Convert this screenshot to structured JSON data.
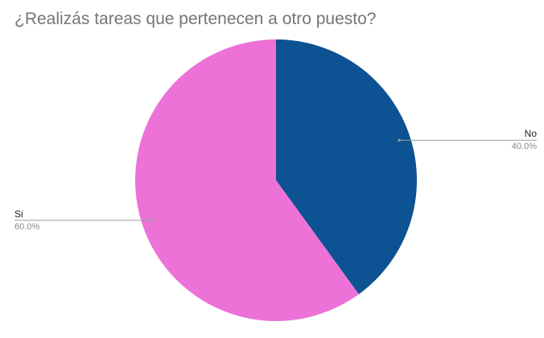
{
  "chart_data": {
    "type": "pie",
    "title": "¿Realizás tareas que pertenecen a otro puesto?",
    "slices": [
      {
        "label": "No",
        "value": 40.0,
        "value_label": "40.0%",
        "color": "#0d5292"
      },
      {
        "label": "Si",
        "value": 60.0,
        "value_label": "60.0%",
        "color": "#ec72d7"
      }
    ],
    "start": "12 o'clock",
    "direction": "clockwise",
    "legend": "none"
  },
  "colors": {
    "leader_line": "#9e9e9e",
    "title": "#757575"
  }
}
